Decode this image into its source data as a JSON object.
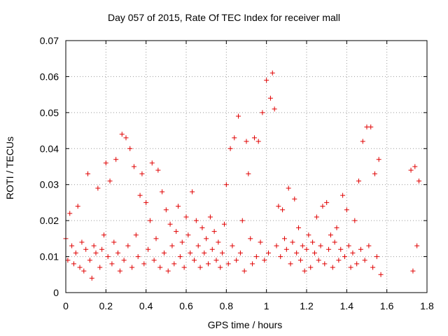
{
  "chart_data": {
    "type": "scatter",
    "title": "Day 057 of 2015, Rate Of TEC Index for receiver mall",
    "xlabel": "GPS time / hours",
    "ylabel": "ROTI / TECUs",
    "xlim": [
      0,
      1.8
    ],
    "ylim": [
      0,
      0.07
    ],
    "xticks": [
      "0",
      "0.2",
      "0.4",
      "0.6",
      "0.8",
      "1",
      "1.2",
      "1.4",
      "1.6",
      "1.8"
    ],
    "yticks": [
      "0",
      "0.01",
      "0.02",
      "0.03",
      "0.04",
      "0.05",
      "0.06",
      "0.07"
    ],
    "grid": true,
    "marker": "+",
    "color": "#e00000",
    "series": [
      {
        "x": [
          0.0,
          0.01,
          0.02,
          0.03,
          0.04,
          0.05,
          0.06,
          0.07,
          0.08,
          0.09,
          0.1,
          0.11,
          0.12,
          0.13,
          0.14,
          0.15,
          0.16,
          0.17,
          0.18,
          0.19,
          0.2,
          0.21,
          0.22,
          0.23,
          0.24,
          0.25,
          0.26,
          0.27,
          0.28,
          0.29,
          0.3,
          0.31,
          0.32,
          0.33,
          0.34,
          0.35,
          0.36,
          0.37,
          0.38,
          0.39,
          0.4,
          0.41,
          0.42,
          0.43,
          0.44,
          0.45,
          0.46,
          0.47,
          0.48,
          0.49,
          0.5,
          0.51,
          0.52,
          0.53,
          0.54,
          0.55,
          0.56,
          0.57,
          0.58,
          0.59,
          0.6,
          0.61,
          0.62,
          0.63,
          0.64,
          0.65,
          0.66,
          0.67,
          0.68,
          0.69,
          0.7,
          0.71,
          0.72,
          0.73,
          0.74,
          0.75,
          0.76,
          0.77,
          0.78,
          0.79,
          0.8,
          0.81,
          0.82,
          0.83,
          0.84,
          0.85,
          0.86,
          0.87,
          0.88,
          0.89,
          0.9,
          0.91,
          0.92,
          0.93,
          0.94,
          0.95,
          0.96,
          0.97,
          0.98,
          0.99,
          1.0,
          1.01,
          1.02,
          1.03,
          1.04,
          1.05,
          1.06,
          1.07,
          1.08,
          1.09,
          1.1,
          1.11,
          1.12,
          1.13,
          1.14,
          1.15,
          1.16,
          1.17,
          1.18,
          1.19,
          1.2,
          1.21,
          1.22,
          1.23,
          1.24,
          1.25,
          1.26,
          1.27,
          1.28,
          1.29,
          1.3,
          1.31,
          1.32,
          1.33,
          1.34,
          1.35,
          1.36,
          1.37,
          1.38,
          1.39,
          1.4,
          1.41,
          1.42,
          1.43,
          1.44,
          1.45,
          1.46,
          1.47,
          1.48,
          1.49,
          1.5,
          1.51,
          1.52,
          1.53,
          1.54,
          1.55,
          1.56,
          1.57,
          1.72,
          1.73,
          1.74,
          1.75,
          1.76
        ],
        "y": [
          0.015,
          0.009,
          0.022,
          0.013,
          0.008,
          0.011,
          0.024,
          0.007,
          0.014,
          0.006,
          0.012,
          0.033,
          0.009,
          0.004,
          0.013,
          0.011,
          0.029,
          0.007,
          0.012,
          0.016,
          0.036,
          0.01,
          0.031,
          0.008,
          0.014,
          0.037,
          0.011,
          0.006,
          0.044,
          0.009,
          0.043,
          0.013,
          0.04,
          0.007,
          0.035,
          0.016,
          0.01,
          0.027,
          0.033,
          0.008,
          0.025,
          0.012,
          0.02,
          0.036,
          0.009,
          0.015,
          0.034,
          0.007,
          0.028,
          0.011,
          0.023,
          0.006,
          0.019,
          0.013,
          0.008,
          0.017,
          0.024,
          0.01,
          0.014,
          0.007,
          0.021,
          0.016,
          0.011,
          0.028,
          0.009,
          0.02,
          0.013,
          0.007,
          0.018,
          0.011,
          0.015,
          0.008,
          0.021,
          0.012,
          0.017,
          0.009,
          0.014,
          0.007,
          0.011,
          0.019,
          0.03,
          0.008,
          0.04,
          0.013,
          0.043,
          0.009,
          0.049,
          0.011,
          0.02,
          0.006,
          0.042,
          0.033,
          0.015,
          0.008,
          0.043,
          0.01,
          0.042,
          0.014,
          0.05,
          0.009,
          0.059,
          0.011,
          0.054,
          0.061,
          0.051,
          0.013,
          0.024,
          0.01,
          0.023,
          0.015,
          0.012,
          0.029,
          0.008,
          0.014,
          0.026,
          0.011,
          0.018,
          0.009,
          0.013,
          0.006,
          0.012,
          0.016,
          0.007,
          0.014,
          0.011,
          0.021,
          0.009,
          0.013,
          0.024,
          0.008,
          0.025,
          0.012,
          0.016,
          0.007,
          0.014,
          0.018,
          0.009,
          0.012,
          0.027,
          0.01,
          0.023,
          0.013,
          0.007,
          0.011,
          0.02,
          0.008,
          0.031,
          0.012,
          0.042,
          0.009,
          0.046,
          0.013,
          0.046,
          0.007,
          0.033,
          0.01,
          0.037,
          0.005,
          0.034,
          0.006,
          0.035,
          0.013,
          0.031
        ]
      }
    ]
  }
}
